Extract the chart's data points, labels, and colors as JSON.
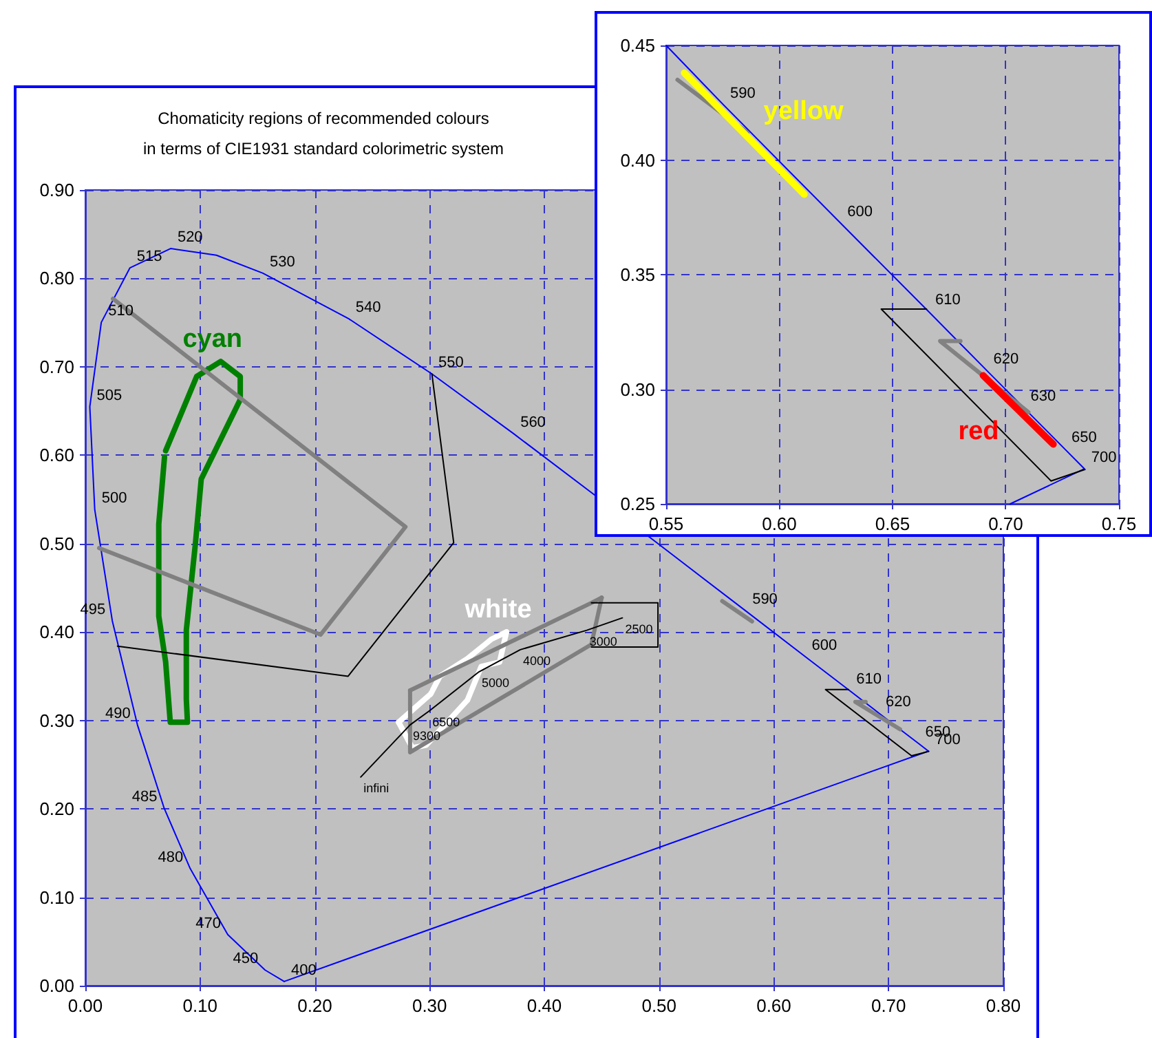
{
  "chart_data": [
    {
      "type": "line",
      "title": "Chomaticity regions of recommended colours\nin terms of CIE1931 standard colorimetric system",
      "xlim": [
        0,
        0.8
      ],
      "ylim": [
        0,
        0.9
      ],
      "xticks": [
        {
          "value": 0,
          "label": "0.00"
        },
        {
          "value": 0.1,
          "label": "0.10"
        },
        {
          "value": 0.2,
          "label": "0.20"
        },
        {
          "value": 0.3,
          "label": "0.30"
        },
        {
          "value": 0.4,
          "label": "0.40"
        },
        {
          "value": 0.5,
          "label": "0.50"
        },
        {
          "value": 0.6,
          "label": "0.60"
        },
        {
          "value": 0.7,
          "label": "0.70"
        },
        {
          "value": 0.8,
          "label": "0.80"
        }
      ],
      "yticks": [
        {
          "value": 0,
          "label": "0.00"
        },
        {
          "value": 0.1,
          "label": "0.10"
        },
        {
          "value": 0.2,
          "label": "0.20"
        },
        {
          "value": 0.3,
          "label": "0.30"
        },
        {
          "value": 0.4,
          "label": "0.40"
        },
        {
          "value": 0.5,
          "label": "0.50"
        },
        {
          "value": 0.6,
          "label": "0.60"
        },
        {
          "value": 0.7,
          "label": "0.70"
        },
        {
          "value": 0.8,
          "label": "0.80"
        },
        {
          "value": 0.9,
          "label": "0.90"
        }
      ],
      "grid": true,
      "legend": false,
      "marker": "none",
      "series": [
        {
          "color": "#0000ff",
          "x": [
            0.1733,
            0.1566,
            0.1241,
            0.0913,
            0.0687,
            0.0454,
            0.0235,
            0.0082,
            0.0039,
            0.0139,
            0.0389,
            0.0743,
            0.1142,
            0.1547,
            0.2296,
            0.3016,
            0.3731,
            0.4441,
            0.5125,
            0.5752,
            0.627,
            0.6658,
            0.6915,
            0.7079,
            0.726,
            0.7347
          ],
          "values": [
            0.0048,
            0.0177,
            0.0578,
            0.1327,
            0.2007,
            0.295,
            0.4127,
            0.5384,
            0.6548,
            0.7502,
            0.812,
            0.8338,
            0.8262,
            0.8059,
            0.7543,
            0.6923,
            0.6245,
            0.5547,
            0.4866,
            0.4242,
            0.3725,
            0.334,
            0.3083,
            0.292,
            0.274,
            0.2653
          ]
        },
        {
          "name": "cyan",
          "color": "#008000",
          "x": [
            0.07,
            0.097,
            0.118,
            0.135,
            0.135,
            0.101,
            0.096,
            0.088,
            0.088,
            0.089,
            0.074,
            0.07,
            0.064,
            0.064,
            0.069
          ],
          "values": [
            0.605,
            0.689,
            0.706,
            0.689,
            0.663,
            0.573,
            0.501,
            0.402,
            0.324,
            0.298,
            0.298,
            0.366,
            0.418,
            0.522,
            0.598
          ]
        },
        {
          "color": "#0000ff",
          "x": [
            0.7347,
            0.1733
          ],
          "values": [
            0.2653,
            0.0048
          ]
        },
        {
          "color": "#808080",
          "x": [
            0.012,
            0.205,
            0.279,
            0.024
          ],
          "values": [
            0.495,
            0.397,
            0.519,
            0.777
          ]
        },
        {
          "color": "#000000",
          "x": [
            0.302,
            0.321,
            0.229,
            0.028
          ],
          "values": [
            0.692,
            0.501,
            0.35,
            0.384
          ]
        },
        {
          "name": "white",
          "color": "#ffffff",
          "x": [
            0.273,
            0.285,
            0.297,
            0.333,
            0.345,
            0.361,
            0.367
          ],
          "values": [
            0.298,
            0.269,
            0.272,
            0.323,
            0.361,
            0.366,
            0.4
          ]
        },
        {
          "color": "#ffffff",
          "x": [
            0.367,
            0.354,
            0.333,
            0.309,
            0.301,
            0.273
          ],
          "values": [
            0.4,
            0.392,
            0.37,
            0.35,
            0.33,
            0.298
          ]
        },
        {
          "color": "#7f7f7f",
          "x": [
            0.283,
            0.441,
            0.45
          ],
          "values": [
            0.334,
            0.433,
            0.439
          ]
        },
        {
          "color": "#7f7f7f",
          "x": [
            0.45,
            0.441,
            0.283,
            0.283
          ],
          "values": [
            0.439,
            0.386,
            0.264,
            0.334
          ]
        },
        {
          "color": "#000000",
          "x": [
            0.441,
            0.499,
            0.499,
            0.441
          ],
          "values": [
            0.433,
            0.433,
            0.383,
            0.383
          ]
        },
        {
          "color": "#000000",
          "x": [
            0.24,
            0.283,
            0.3,
            0.343,
            0.379,
            0.437,
            0.468
          ],
          "values": [
            0.236,
            0.295,
            0.311,
            0.355,
            0.38,
            0.402,
            0.416
          ]
        },
        {
          "color": "#818181",
          "x": [
            0.555,
            0.581
          ],
          "values": [
            0.435,
            0.412
          ]
        },
        {
          "color": "#828282",
          "x": [
            0.68,
            0.671,
            0.71
          ],
          "values": [
            0.321,
            0.321,
            0.29
          ]
        },
        {
          "color": "#000000",
          "x": [
            0.665,
            0.645,
            0.72,
            0.735
          ],
          "values": [
            0.335,
            0.335,
            0.26,
            0.265
          ]
        }
      ],
      "annotations": [
        {
          "text": "400",
          "x": 0.1733,
          "y": 0.0048
        },
        {
          "text": "450",
          "x": 0.1566,
          "y": 0.0177
        },
        {
          "text": "470",
          "x": 0.1241,
          "y": 0.0578
        },
        {
          "text": "480",
          "x": 0.0913,
          "y": 0.1327
        },
        {
          "text": "485",
          "x": 0.0687,
          "y": 0.2007
        },
        {
          "text": "490",
          "x": 0.0454,
          "y": 0.295
        },
        {
          "text": "495",
          "x": 0.0235,
          "y": 0.4127
        },
        {
          "text": "500",
          "x": 0.0082,
          "y": 0.5384
        },
        {
          "text": "505",
          "x": 0.0039,
          "y": 0.6548
        },
        {
          "text": "510",
          "x": 0.0139,
          "y": 0.7502
        },
        {
          "text": "515",
          "x": 0.0389,
          "y": 0.812
        },
        {
          "text": "520",
          "x": 0.0743,
          "y": 0.8338
        },
        {
          "text": "530",
          "x": 0.1547,
          "y": 0.8059
        },
        {
          "text": "540",
          "x": 0.2296,
          "y": 0.7543
        },
        {
          "text": "550",
          "x": 0.3016,
          "y": 0.6923
        },
        {
          "text": "560",
          "x": 0.3731,
          "y": 0.6245
        },
        {
          "text": "590",
          "x": 0.5752,
          "y": 0.4242
        },
        {
          "text": "600",
          "x": 0.627,
          "y": 0.3725
        },
        {
          "text": "610",
          "x": 0.6658,
          "y": 0.334
        },
        {
          "text": "620",
          "x": 0.6915,
          "y": 0.3083
        },
        {
          "text": "650",
          "x": 0.726,
          "y": 0.274
        },
        {
          "text": "700",
          "x": 0.7347,
          "y": 0.2653
        },
        {
          "text": "2500",
          "x": 0.468,
          "y": 0.416
        },
        {
          "text": "3000",
          "x": 0.437,
          "y": 0.402
        },
        {
          "text": "4000",
          "x": 0.379,
          "y": 0.38
        },
        {
          "text": "5000",
          "x": 0.343,
          "y": 0.355
        },
        {
          "text": "6500",
          "x": 0.3,
          "y": 0.311
        },
        {
          "text": "9300",
          "x": 0.283,
          "y": 0.295
        },
        {
          "text": "infini",
          "x": 0.24,
          "y": 0.236
        }
      ]
    },
    {
      "type": "line",
      "xlim": [
        0.55,
        0.75
      ],
      "ylim": [
        0.25,
        0.45
      ],
      "xticks": [
        {
          "value": 0.55,
          "label": "0.55"
        },
        {
          "value": 0.6,
          "label": "0.60"
        },
        {
          "value": 0.65,
          "label": "0.65"
        },
        {
          "value": 0.7,
          "label": "0.70"
        },
        {
          "value": 0.75,
          "label": "0.75"
        }
      ],
      "yticks": [
        {
          "value": 0.25,
          "label": "0.25"
        },
        {
          "value": 0.3,
          "label": "0.30"
        },
        {
          "value": 0.35,
          "label": "0.35"
        },
        {
          "value": 0.4,
          "label": "0.40"
        },
        {
          "value": 0.45,
          "label": "0.45"
        }
      ],
      "grid": true,
      "legend": false,
      "marker": "none",
      "series": [
        {
          "color": "#0000ff",
          "x": [
            0.55,
            0.5752,
            0.627,
            0.6658,
            0.6915,
            0.7079,
            0.726,
            0.7347,
            0.702
          ],
          "values": [
            0.45,
            0.4242,
            0.3725,
            0.334,
            0.3083,
            0.292,
            0.274,
            0.2653,
            0.25
          ]
        },
        {
          "color": "#808080",
          "x": [
            0.555,
            0.586
          ],
          "values": [
            0.435,
            0.412
          ]
        },
        {
          "name": "yellow",
          "color": "#ffff00",
          "x": [
            0.558,
            0.611
          ],
          "values": [
            0.438,
            0.385
          ]
        },
        {
          "color": "#828282",
          "x": [
            0.68,
            0.671,
            0.71
          ],
          "values": [
            0.321,
            0.321,
            0.29
          ]
        },
        {
          "color": "#000000",
          "x": [
            0.665,
            0.645,
            0.72,
            0.735
          ],
          "values": [
            0.335,
            0.335,
            0.26,
            0.265
          ]
        },
        {
          "name": "red",
          "color": "#ff0000",
          "x": [
            0.69,
            0.721
          ],
          "values": [
            0.306,
            0.276
          ]
        }
      ],
      "annotations": [
        {
          "text": "590",
          "x": 0.5752,
          "y": 0.4242
        },
        {
          "text": "600",
          "x": 0.627,
          "y": 0.3725
        },
        {
          "text": "610",
          "x": 0.6658,
          "y": 0.334
        },
        {
          "text": "620",
          "x": 0.6915,
          "y": 0.3083
        },
        {
          "text": "630",
          "x": 0.7079,
          "y": 0.292
        },
        {
          "text": "650",
          "x": 0.726,
          "y": 0.274
        },
        {
          "text": "700",
          "x": 0.7347,
          "y": 0.2653
        }
      ]
    }
  ]
}
